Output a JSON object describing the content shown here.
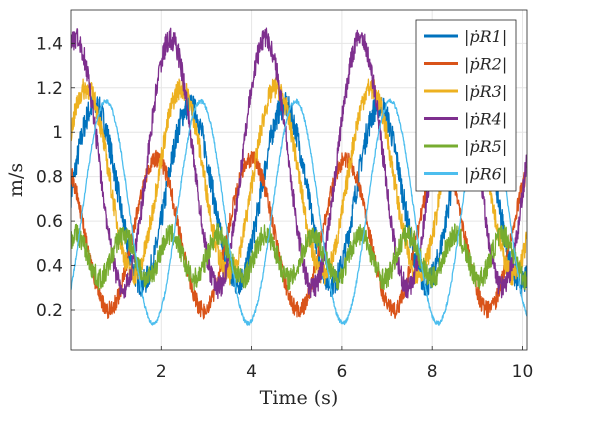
{
  "chart_data": {
    "type": "line",
    "title": "",
    "xlabel": "Time (s)",
    "ylabel": "m/s",
    "xlim": [
      0,
      10.1
    ],
    "ylim": [
      0.02,
      1.55
    ],
    "xticks": [
      2,
      4,
      6,
      8,
      10
    ],
    "xtick_labels": [
      "2",
      "4",
      "6",
      "8",
      "10"
    ],
    "yticks": [
      0.2,
      0.4,
      0.6,
      0.8,
      1.0,
      1.2,
      1.4
    ],
    "ytick_labels": [
      "0.2",
      "0.4",
      "0.6",
      "0.8",
      "1",
      "1.2",
      "1.4"
    ],
    "grid": true,
    "legend_position": "top-right",
    "series": [
      {
        "name": "|ṗR1|",
        "color": "#0072BD",
        "mean": 0.72,
        "amplitude": 0.4,
        "period": 2.1,
        "phase": 0.0,
        "noise": 0.06
      },
      {
        "name": "|ṗR2|",
        "color": "#D95319",
        "mean": 0.54,
        "amplitude": 0.34,
        "period": 2.1,
        "phase": 2.2,
        "noise": 0.04
      },
      {
        "name": "|ṗR3|",
        "color": "#EDB120",
        "mean": 0.78,
        "amplitude": 0.42,
        "period": 2.1,
        "phase": 0.55,
        "noise": 0.05
      },
      {
        "name": "|ṗR4|",
        "color": "#7E2F8E",
        "mean": 0.86,
        "amplitude": 0.56,
        "period": 2.1,
        "phase": 1.25,
        "noise": 0.05
      },
      {
        "name": "|ṗR5|",
        "color": "#77AC30",
        "mean": 0.44,
        "amplitude": 0.1,
        "period": 1.05,
        "phase": 0.9,
        "noise": 0.05
      },
      {
        "name": "|ṗR6|",
        "color": "#4DBEEE",
        "mean": 0.64,
        "amplitude": 0.5,
        "period": 2.1,
        "phase": -0.75,
        "noise": 0.01
      }
    ]
  }
}
